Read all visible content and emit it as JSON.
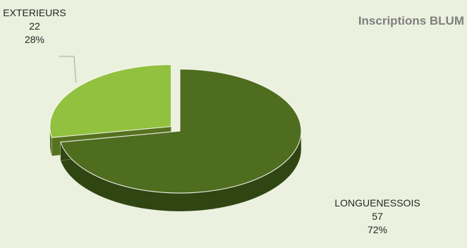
{
  "chart_data": {
    "type": "pie",
    "title": "Inscriptions BLUM",
    "style": "3d-exploded",
    "categories": [
      "EXTERIEURS",
      "LONGUENESSOIS"
    ],
    "values": [
      22,
      57
    ],
    "percent_labels": [
      "28%",
      "72%"
    ],
    "colors": {
      "EXTERIEURS": {
        "top": "#92c13f",
        "side": "#56711f"
      },
      "LONGUENESSOIS": {
        "top": "#4e6d1f",
        "side": "#2f4512"
      }
    },
    "background": "#ebf1de",
    "legend": "none",
    "exploded": "EXTERIEURS"
  }
}
